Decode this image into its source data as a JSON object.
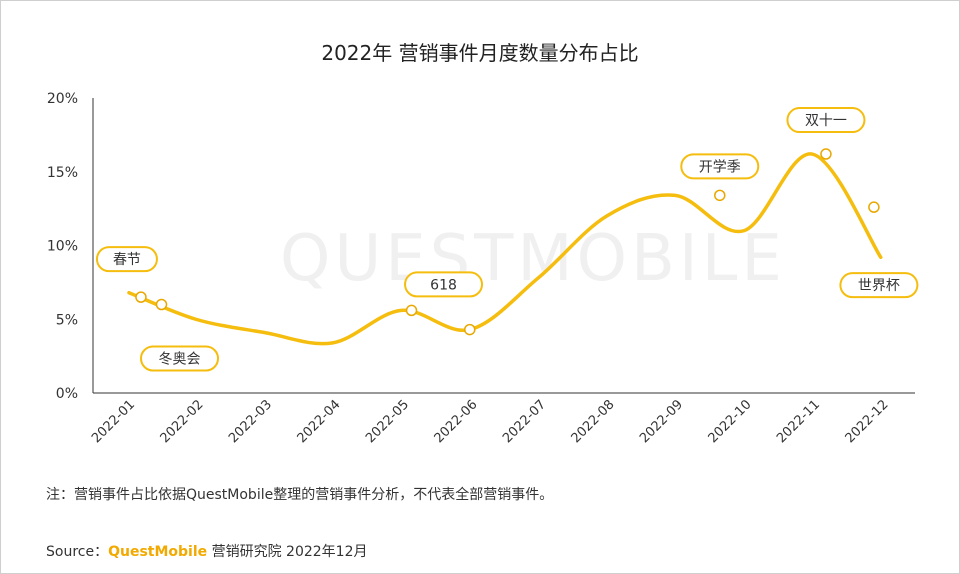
{
  "chart_data": {
    "type": "line",
    "title": "2022年 营销事件月度数量分布占比",
    "categories": [
      "2022-01",
      "2022-02",
      "2022-03",
      "2022-04",
      "2022-05",
      "2022-06",
      "2022-07",
      "2022-08",
      "2022-09",
      "2022-10",
      "2022-11",
      "2022-12"
    ],
    "y_ticks": [
      "0%",
      "5%",
      "10%",
      "15%",
      "20%"
    ],
    "ylim": [
      0,
      20
    ],
    "curve": [
      {
        "x": "2022-01",
        "y": 6.8
      },
      {
        "x": "2022-02",
        "y": 5.0
      },
      {
        "x": "2022-03",
        "y": 4.1
      },
      {
        "x": "2022-04",
        "y": 3.4
      },
      {
        "x": "2022-05",
        "y": 5.6
      },
      {
        "x": "2022-06",
        "y": 4.3
      },
      {
        "x": "2022-07",
        "y": 7.8
      },
      {
        "x": "2022-08",
        "y": 12.0
      },
      {
        "x": "2022-09",
        "y": 13.4
      },
      {
        "x": "2022-10",
        "y": 11.0
      },
      {
        "x": "2022-11",
        "y": 16.2
      },
      {
        "x": "2022-12",
        "y": 9.2
      }
    ],
    "events": [
      {
        "label": "春节",
        "x": 0.2,
        "y": 6.5
      },
      {
        "label": "冬奥会",
        "x": 0.5,
        "y": 6.0
      },
      {
        "label": "618",
        "x": 4.15,
        "y": 5.6
      },
      {
        "label": "",
        "x": 5.0,
        "y": 4.3
      },
      {
        "label": "开学季",
        "x": 8.65,
        "y": 13.4
      },
      {
        "label": "双十一",
        "x": 10.2,
        "y": 16.2
      },
      {
        "label": "世界杯",
        "x": 10.9,
        "y": 12.6
      }
    ],
    "line_color": "#f5bd0e"
  },
  "watermark": "QUESTMOBILE",
  "footer": {
    "note": "注：营销事件占比依据QuestMobile整理的营销事件分析，不代表全部营销事件。",
    "source_prefix": "Source：",
    "source_brand": "QuestMobile",
    "source_suffix": " 营销研究院 2022年12月"
  }
}
